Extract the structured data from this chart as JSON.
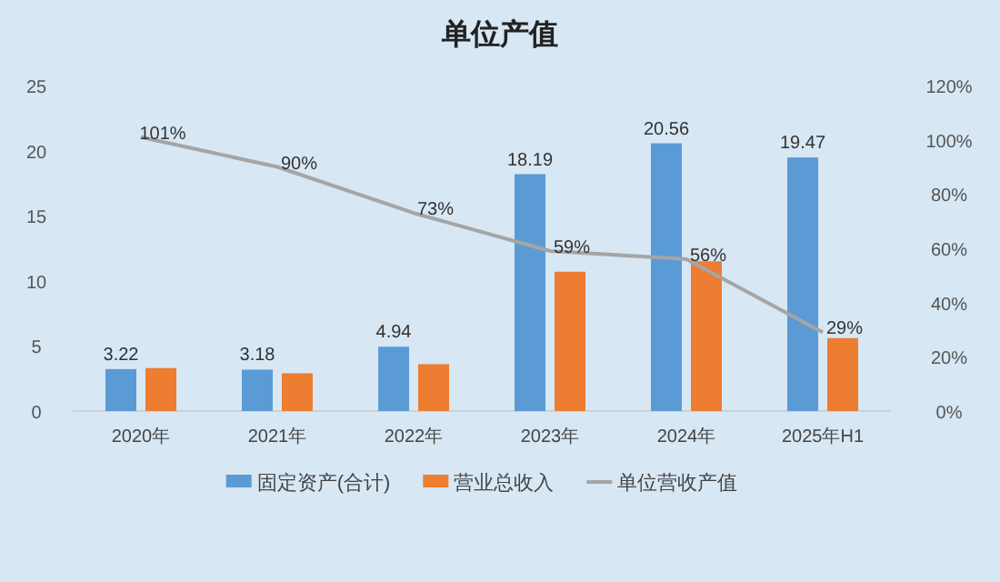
{
  "chart_data": {
    "type": "bar",
    "title": "单位产值",
    "categories": [
      "2020年",
      "2021年",
      "2022年",
      "2023年",
      "2024年",
      "2025年H1"
    ],
    "series": [
      {
        "name": "固定资产(合计)",
        "color": "#5b9bd5",
        "values": [
          3.22,
          3.18,
          4.94,
          18.19,
          20.56,
          19.47
        ],
        "value_labels": [
          "3.22",
          "3.18",
          "4.94",
          "18.19",
          "20.56",
          "19.47"
        ]
      },
      {
        "name": "营业总收入",
        "color": "#ed7d31",
        "values": [
          3.3,
          2.9,
          3.6,
          10.7,
          11.5,
          5.6
        ]
      },
      {
        "name": "单位营收产值",
        "type": "line",
        "axis": "y2",
        "color": "#a5a5a5",
        "values": [
          101,
          90,
          73,
          59,
          56,
          29
        ],
        "value_labels": [
          "101%",
          "90%",
          "73%",
          "59%",
          "56%",
          "29%"
        ]
      }
    ],
    "ylim": [
      0,
      25
    ],
    "yticks": [
      0,
      5,
      10,
      15,
      20,
      25
    ],
    "y2lim": [
      0,
      120
    ],
    "y2ticks": [
      {
        "value": 0,
        "label": "0%"
      },
      {
        "value": 20,
        "label": "20%"
      },
      {
        "value": 40,
        "label": "40%"
      },
      {
        "value": 60,
        "label": "60%"
      },
      {
        "value": 80,
        "label": "80%"
      },
      {
        "value": 100,
        "label": "100%"
      },
      {
        "value": 120,
        "label": "120%"
      }
    ],
    "grid": false,
    "legend": "bottom",
    "marker": "none",
    "line_style": "solid"
  }
}
